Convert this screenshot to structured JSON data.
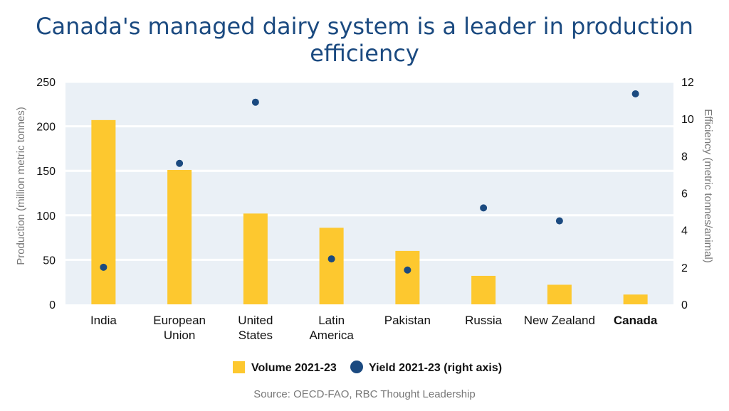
{
  "title": "Canada's managed dairy system is a leader in production efficiency",
  "source": "Source: OECD-FAO, RBC Thought Leadership",
  "colors": {
    "bar": "#fdc82f",
    "dot": "#1b4a80",
    "plot_bg": "#eaf0f6",
    "gridline": "#ffffff",
    "title": "#1b4a80"
  },
  "chart_data": {
    "type": "bar",
    "categories": [
      [
        "India"
      ],
      [
        "European",
        "Union"
      ],
      [
        "United",
        "States"
      ],
      [
        "Latin",
        "America"
      ],
      [
        "Pakistan"
      ],
      [
        "Russia"
      ],
      [
        "New Zealand"
      ],
      [
        "Canada"
      ]
    ],
    "highlight_category": "Canada",
    "series": [
      {
        "name": "Volume 2021-23",
        "kind": "bar",
        "axis": "left",
        "values": [
          207,
          151,
          102,
          86,
          60,
          32,
          22,
          11
        ]
      },
      {
        "name": "Yield 2021-23 (right axis)",
        "kind": "scatter",
        "axis": "right",
        "values": [
          2.0,
          7.6,
          10.9,
          2.45,
          1.85,
          5.2,
          4.5,
          11.35
        ]
      }
    ],
    "ylabel": "Production (million metric tonnes)",
    "y2label": "Efficiency (metric tonnes/animal)",
    "ylim": [
      0,
      250
    ],
    "y2lim": [
      0,
      12
    ],
    "yticks": [
      0,
      50,
      100,
      150,
      200,
      250
    ],
    "y2ticks": [
      0,
      2,
      4,
      6,
      8,
      10,
      12
    ],
    "grid": true,
    "legend_position": "bottom"
  }
}
